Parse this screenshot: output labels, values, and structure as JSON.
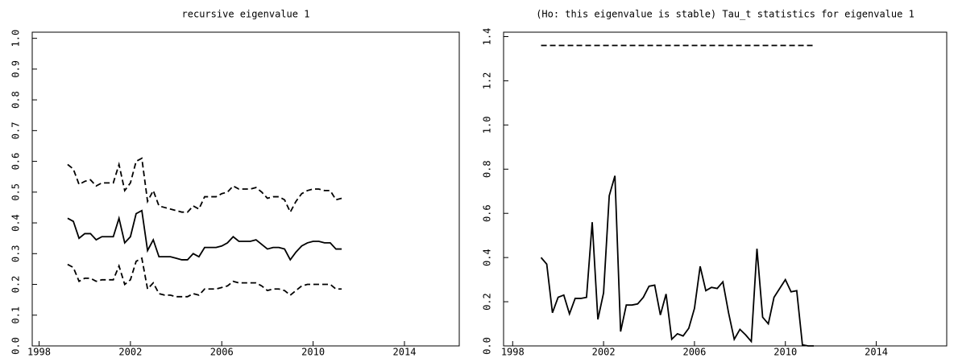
{
  "chart_data": [
    {
      "type": "line",
      "title": "recursive eigenvalue 1",
      "x": [
        1999.25,
        1999.5,
        1999.75,
        2000,
        2000.25,
        2000.5,
        2000.75,
        2001,
        2001.25,
        2001.5,
        2001.75,
        2002,
        2002.25,
        2002.5,
        2002.75,
        2003,
        2003.25,
        2003.5,
        2003.75,
        2004,
        2004.25,
        2004.5,
        2004.75,
        2005,
        2005.25,
        2005.5,
        2005.75,
        2006,
        2006.25,
        2006.5,
        2006.75,
        2007,
        2007.25,
        2007.5,
        2007.75,
        2008,
        2008.25,
        2008.5,
        2008.75,
        2009,
        2009.25,
        2009.5,
        2009.75,
        2010,
        2010.25,
        2010.5,
        2010.75,
        2011,
        2011.25
      ],
      "series": [
        {
          "color": "#000000",
          "dashed": false,
          "values": [
            0.415,
            0.405,
            0.35,
            0.365,
            0.365,
            0.345,
            0.355,
            0.355,
            0.355,
            0.415,
            0.335,
            0.355,
            0.43,
            0.44,
            0.31,
            0.345,
            0.29,
            0.29,
            0.29,
            0.285,
            0.28,
            0.28,
            0.3,
            0.29,
            0.32,
            0.32,
            0.32,
            0.325,
            0.335,
            0.355,
            0.34,
            0.34,
            0.34,
            0.345,
            0.33,
            0.315,
            0.32,
            0.32,
            0.315,
            0.28,
            0.305,
            0.325,
            0.335,
            0.34,
            0.34,
            0.335,
            0.335,
            0.315,
            0.315
          ]
        },
        {
          "color": "#000000",
          "dashed": true,
          "values": [
            0.59,
            0.575,
            0.525,
            0.535,
            0.54,
            0.52,
            0.53,
            0.53,
            0.53,
            0.59,
            0.505,
            0.53,
            0.6,
            0.61,
            0.47,
            0.505,
            0.455,
            0.45,
            0.445,
            0.44,
            0.435,
            0.435,
            0.455,
            0.445,
            0.485,
            0.485,
            0.485,
            0.495,
            0.5,
            0.52,
            0.51,
            0.51,
            0.51,
            0.515,
            0.5,
            0.48,
            0.485,
            0.485,
            0.475,
            0.435,
            0.47,
            0.495,
            0.505,
            0.51,
            0.51,
            0.505,
            0.505,
            0.475,
            0.48
          ]
        },
        {
          "color": "#000000",
          "dashed": true,
          "values": [
            0.265,
            0.255,
            0.21,
            0.22,
            0.22,
            0.21,
            0.215,
            0.215,
            0.215,
            0.26,
            0.2,
            0.215,
            0.275,
            0.285,
            0.185,
            0.205,
            0.17,
            0.165,
            0.165,
            0.16,
            0.16,
            0.16,
            0.17,
            0.165,
            0.185,
            0.185,
            0.185,
            0.19,
            0.195,
            0.21,
            0.205,
            0.205,
            0.205,
            0.205,
            0.195,
            0.18,
            0.185,
            0.185,
            0.18,
            0.165,
            0.18,
            0.195,
            0.2,
            0.2,
            0.2,
            0.2,
            0.2,
            0.185,
            0.185
          ]
        }
      ],
      "xlim": [
        1997.7,
        2016.4
      ],
      "xticks": [
        1998,
        2002,
        2006,
        2010,
        2014
      ],
      "ylim": [
        0,
        1.02
      ],
      "yticks": [
        {
          "value": 0,
          "label": "0.0"
        },
        0.1,
        0.2,
        0.3,
        0.4,
        0.5,
        0.6,
        0.7,
        0.8,
        0.9,
        {
          "value": 1,
          "label": "1.0"
        }
      ]
    },
    {
      "type": "line",
      "title": "(Ho: this eigenvalue is stable) Tau_t statistics for eigenvalue 1",
      "x": [
        1999.25,
        1999.5,
        1999.75,
        2000,
        2000.25,
        2000.5,
        2000.75,
        2001,
        2001.25,
        2001.5,
        2001.75,
        2002,
        2002.25,
        2002.5,
        2002.75,
        2003,
        2003.25,
        2003.5,
        2003.75,
        2004,
        2004.25,
        2004.5,
        2004.75,
        2005,
        2005.25,
        2005.5,
        2005.75,
        2006,
        2006.25,
        2006.5,
        2006.75,
        2007,
        2007.25,
        2007.5,
        2007.75,
        2008,
        2008.25,
        2008.5,
        2008.75,
        2009,
        2009.25,
        2009.5,
        2009.75,
        2010,
        2010.25,
        2010.5,
        2010.75,
        2011,
        2011.25
      ],
      "series": [
        {
          "color": "#000000",
          "dashed": false,
          "values": [
            0.4,
            0.37,
            0.15,
            0.22,
            0.23,
            0.145,
            0.215,
            0.215,
            0.22,
            0.56,
            0.12,
            0.24,
            0.68,
            0.77,
            0.065,
            0.185,
            0.185,
            0.19,
            0.22,
            0.27,
            0.275,
            0.14,
            0.235,
            0.03,
            0.055,
            0.045,
            0.08,
            0.17,
            0.36,
            0.25,
            0.265,
            0.26,
            0.29,
            0.15,
            0.03,
            0.075,
            0.05,
            0.02,
            0.44,
            0.13,
            0.1,
            0.22,
            0.26,
            0.3,
            0.245,
            0.25,
            0.005,
            0,
            0
          ]
        },
        {
          "color": "#000000",
          "dashed": true,
          "values": [
            1.36,
            1.36,
            1.36,
            1.36,
            1.36,
            1.36,
            1.36,
            1.36,
            1.36,
            1.36,
            1.36,
            1.36,
            1.36,
            1.36,
            1.36,
            1.36,
            1.36,
            1.36,
            1.36,
            1.36,
            1.36,
            1.36,
            1.36,
            1.36,
            1.36,
            1.36,
            1.36,
            1.36,
            1.36,
            1.36,
            1.36,
            1.36,
            1.36,
            1.36,
            1.36,
            1.36,
            1.36,
            1.36,
            1.36,
            1.36,
            1.36,
            1.36,
            1.36,
            1.36,
            1.36,
            1.36,
            1.36,
            1.36,
            1.36
          ]
        }
      ],
      "xlim": [
        1997.6,
        2017.1
      ],
      "xticks": [
        1998,
        2002,
        2006,
        2010,
        2014
      ],
      "ylim": [
        0,
        1.42
      ],
      "yticks": [
        {
          "value": 0,
          "label": "0.0"
        },
        0.2,
        0.4,
        0.6,
        0.8,
        {
          "value": 1,
          "label": "1.0"
        },
        1.2,
        1.4
      ]
    }
  ]
}
